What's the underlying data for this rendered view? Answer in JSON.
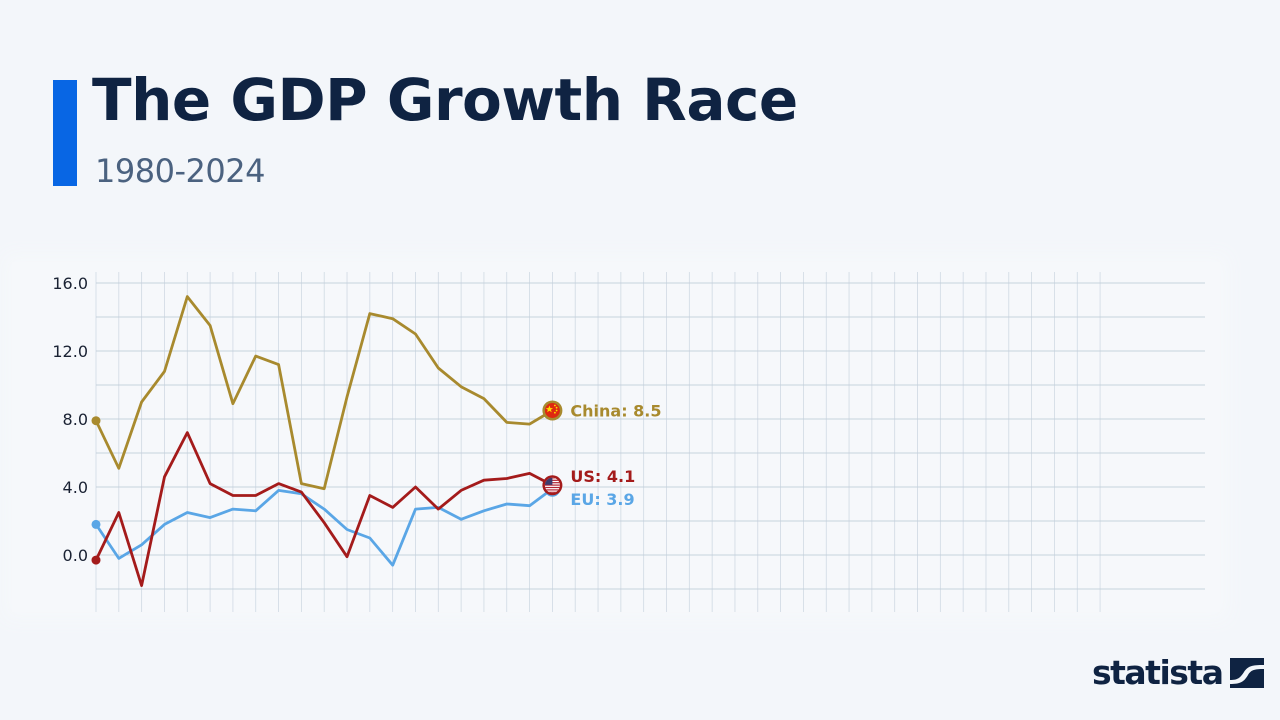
{
  "header": {
    "title": "The GDP Growth Race",
    "subtitle": "1980-2024"
  },
  "branding": {
    "logo_text": "statista",
    "logo_icon": "statista-wave-icon"
  },
  "colors": {
    "background": "#f3f6fa",
    "accent_bar": "#0866e4",
    "title": "#0f2342",
    "subtitle": "#4b6280",
    "china": "#a88a2e",
    "us": "#a41b1b",
    "eu": "#5aa6e6",
    "grid": "#c3cfdb"
  },
  "labels": {
    "china": "China: 8.5",
    "us": "US: 4.1",
    "eu": "EU: 3.9"
  },
  "chart_data": {
    "type": "line",
    "title": "The GDP Growth Race",
    "subtitle": "1980-2024",
    "xlabel": "",
    "ylabel": "",
    "x_range": [
      1980,
      2024
    ],
    "current_year": 2000,
    "ylim": [
      -2,
      16
    ],
    "yticks": [
      0.0,
      4.0,
      8.0,
      12.0,
      16.0
    ],
    "ytick_labels": [
      "0.0",
      "4.0",
      "8.0",
      "12.0",
      "16.0"
    ],
    "grid": true,
    "legend_position": "end-of-line labels",
    "x": [
      1980,
      1981,
      1982,
      1983,
      1984,
      1985,
      1986,
      1987,
      1988,
      1989,
      1990,
      1991,
      1992,
      1993,
      1994,
      1995,
      1996,
      1997,
      1998,
      1999,
      2000
    ],
    "series": [
      {
        "name": "China",
        "color": "#a88a2e",
        "flag": "china-flag-icon",
        "end_label": "China: 8.5",
        "values": [
          7.9,
          5.1,
          9.0,
          10.8,
          15.2,
          13.5,
          8.9,
          11.7,
          11.2,
          4.2,
          3.9,
          9.3,
          14.2,
          13.9,
          13.0,
          11.0,
          9.9,
          9.2,
          7.8,
          7.7,
          8.5
        ]
      },
      {
        "name": "US",
        "color": "#a41b1b",
        "flag": "us-flag-icon",
        "end_label": "US: 4.1",
        "values": [
          -0.3,
          2.5,
          -1.8,
          4.6,
          7.2,
          4.2,
          3.5,
          3.5,
          4.2,
          3.7,
          1.9,
          -0.1,
          3.5,
          2.8,
          4.0,
          2.7,
          3.8,
          4.4,
          4.5,
          4.8,
          4.1
        ]
      },
      {
        "name": "EU",
        "color": "#5aa6e6",
        "flag": "",
        "end_label": "EU: 3.9",
        "values": [
          1.8,
          -0.2,
          0.6,
          1.8,
          2.5,
          2.2,
          2.7,
          2.6,
          3.8,
          3.6,
          2.7,
          1.5,
          1.0,
          -0.6,
          2.7,
          2.8,
          2.1,
          2.6,
          3.0,
          2.9,
          3.9
        ]
      }
    ]
  }
}
